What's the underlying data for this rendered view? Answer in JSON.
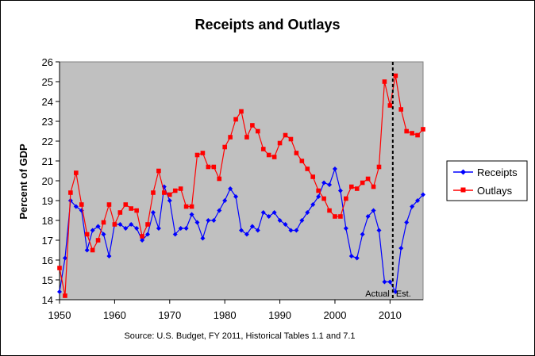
{
  "chart_data": {
    "type": "line",
    "title": "Receipts and Outlays",
    "ylabel": "Percent of GDP",
    "xlabel": "",
    "xlim": [
      1950,
      2016
    ],
    "ylim": [
      14,
      26
    ],
    "x_ticks": [
      "1950",
      "1960",
      "1970",
      "1980",
      "1990",
      "2000",
      "2010"
    ],
    "y_ticks": [
      "14",
      "15",
      "16",
      "17",
      "18",
      "19",
      "20",
      "21",
      "22",
      "23",
      "24",
      "25",
      "26"
    ],
    "grid": false,
    "legend": "right",
    "source": "Source: U.S. Budget, FY 2011, Historical Tables 1.1 and 7.1",
    "annotations": {
      "divider_x": 2010.5,
      "left_label": "Actual",
      "right_label": "Est."
    },
    "x": [
      1950,
      1951,
      1952,
      1953,
      1954,
      1955,
      1956,
      1957,
      1958,
      1959,
      1960,
      1961,
      1962,
      1963,
      1964,
      1965,
      1966,
      1967,
      1968,
      1969,
      1970,
      1971,
      1972,
      1973,
      1974,
      1975,
      1976,
      1977,
      1978,
      1979,
      1980,
      1981,
      1982,
      1983,
      1984,
      1985,
      1986,
      1987,
      1988,
      1989,
      1990,
      1991,
      1992,
      1993,
      1994,
      1995,
      1996,
      1997,
      1998,
      1999,
      2000,
      2001,
      2002,
      2003,
      2004,
      2005,
      2006,
      2007,
      2008,
      2009,
      2010,
      2011,
      2012,
      2013,
      2014,
      2015,
      2016
    ],
    "series": [
      {
        "name": "Receipts",
        "color": "#0000ff",
        "marker": "diamond",
        "values": [
          14.4,
          16.1,
          19.0,
          18.7,
          18.5,
          16.5,
          17.5,
          17.7,
          17.3,
          16.2,
          17.8,
          17.8,
          17.6,
          17.8,
          17.6,
          17.0,
          17.3,
          18.4,
          17.6,
          19.7,
          19.0,
          17.3,
          17.6,
          17.6,
          18.3,
          17.9,
          17.1,
          18.0,
          18.0,
          18.5,
          19.0,
          19.6,
          19.2,
          17.5,
          17.3,
          17.7,
          17.5,
          18.4,
          18.2,
          18.4,
          18.0,
          17.8,
          17.5,
          17.5,
          18.0,
          18.4,
          18.8,
          19.2,
          19.9,
          19.8,
          20.6,
          19.5,
          17.6,
          16.2,
          16.1,
          17.3,
          18.2,
          18.5,
          17.5,
          14.9,
          14.9,
          14.4,
          16.6,
          17.9,
          18.7,
          19.0,
          19.3
        ]
      },
      {
        "name": "Outlays",
        "color": "#ff0000",
        "marker": "square",
        "values": [
          15.6,
          14.2,
          19.4,
          20.4,
          18.8,
          17.3,
          16.5,
          17.0,
          17.9,
          18.8,
          17.8,
          18.4,
          18.8,
          18.6,
          18.5,
          17.2,
          17.8,
          19.4,
          20.5,
          19.4,
          19.3,
          19.5,
          19.6,
          18.7,
          18.7,
          21.3,
          21.4,
          20.7,
          20.7,
          20.1,
          21.7,
          22.2,
          23.1,
          23.5,
          22.2,
          22.8,
          22.5,
          21.6,
          21.3,
          21.2,
          21.9,
          22.3,
          22.1,
          21.4,
          21.0,
          20.6,
          20.2,
          19.5,
          19.1,
          18.5,
          18.2,
          18.2,
          19.1,
          19.7,
          19.6,
          19.9,
          20.1,
          19.7,
          20.7,
          25.0,
          23.8,
          25.3,
          23.6,
          22.5,
          22.4,
          22.3,
          22.6
        ]
      }
    ]
  }
}
